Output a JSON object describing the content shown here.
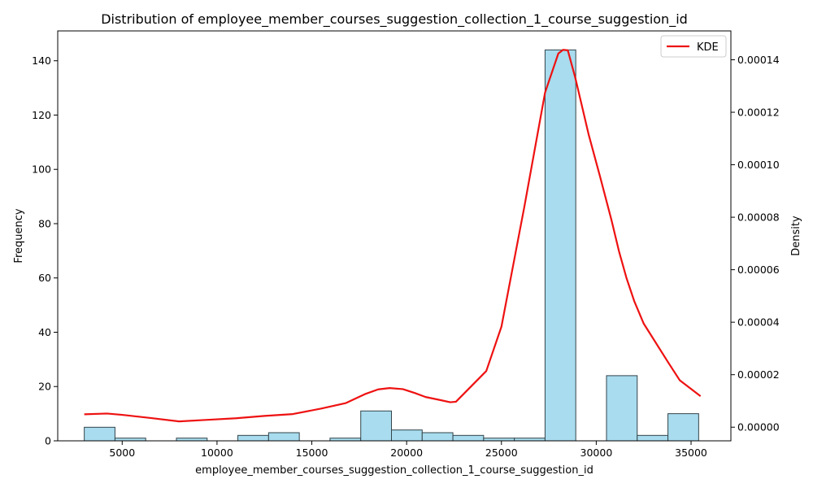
{
  "chart_data": {
    "type": "bar",
    "title": "Distribution of employee_member_courses_suggestion_collection_1_course_suggestion_id",
    "xlabel": "employee_member_courses_suggestion_collection_1_course_suggestion_id",
    "ylabel": "Frequency",
    "y2label": "Density",
    "xlim": [
      1600,
      37100
    ],
    "ylim": [
      0,
      151
    ],
    "y2lim": [
      -5.2e-06,
      0.000151
    ],
    "xticks": [
      5000,
      10000,
      15000,
      20000,
      25000,
      30000,
      35000
    ],
    "yticks": [
      0,
      20,
      40,
      60,
      80,
      100,
      120,
      140
    ],
    "y2ticks": [
      0.0,
      2e-05,
      4e-05,
      6e-05,
      8e-05,
      0.0001,
      0.00012,
      0.00014
    ],
    "y2tick_labels": [
      "0.00000",
      "0.00002",
      "0.00004",
      "0.00006",
      "0.00008",
      "0.00010",
      "0.00012",
      "0.00014"
    ],
    "grid": false,
    "legend_position": "top-right",
    "histogram": {
      "bin_edges": [
        3000,
        4620,
        6240,
        7860,
        9480,
        11100,
        12720,
        14340,
        15960,
        17580,
        19200,
        20820,
        22440,
        24060,
        25680,
        27300,
        28920,
        30540,
        32160,
        33780,
        35400
      ],
      "counts": [
        5,
        1,
        0,
        1,
        0,
        2,
        3,
        0,
        1,
        11,
        4,
        3,
        2,
        1,
        1,
        144,
        0,
        24,
        2,
        10
      ],
      "fill_color": "#a8dcee",
      "edge_color": "#33444a"
    },
    "kde": {
      "name": "KDE",
      "color": "#ee1111",
      "x": [
        3000,
        4200,
        5000,
        6500,
        8000,
        9500,
        11000,
        12500,
        14000,
        15500,
        16800,
        17800,
        18500,
        19100,
        19800,
        20400,
        21000,
        21800,
        22300,
        22600,
        24200,
        25000,
        26200,
        27300,
        28000,
        28250,
        28500,
        28900,
        29600,
        30200,
        30800,
        31200,
        31600,
        32000,
        32500,
        33800,
        34400,
        35500
      ],
      "y": [
        4.9e-06,
        5.2e-06,
        4.7e-06,
        3.5e-06,
        2.2e-06,
        2.8e-06,
        3.4e-06,
        4.3e-06,
        5e-06,
        7.1e-06,
        9.2e-06,
        1.26e-05,
        1.44e-05,
        1.49e-05,
        1.45e-05,
        1.31e-05,
        1.15e-05,
        1.03e-05,
        9.5e-06,
        9.7e-06,
        2.14e-05,
        3.83e-05,
        8.37e-05,
        0.0001275,
        0.0001424,
        0.0001438,
        0.0001436,
        0.000133,
        0.0001115,
        9.55e-05,
        7.9e-05,
        6.7e-05,
        5.67e-05,
        4.81e-05,
        3.95e-05,
        2.46e-05,
        1.79e-05,
        1.18e-05
      ]
    }
  }
}
